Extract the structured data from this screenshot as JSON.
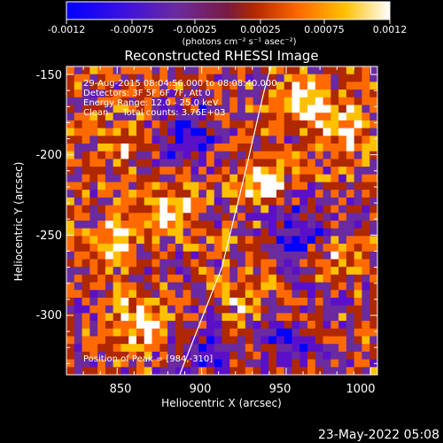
{
  "chart_data": {
    "type": "heatmap",
    "title": "Reconstructed RHESSI Image",
    "xlabel": "Heliocentric X (arcsec)",
    "ylabel": "Heliocentric Y (arcsec)",
    "xlim": [
      820,
      1004
    ],
    "ylim": [
      -337,
      -145
    ],
    "x_ticks": [
      850,
      900,
      950,
      1000
    ],
    "y_ticks": [
      -150,
      -200,
      -250,
      -300
    ],
    "colorbar": {
      "range": [
        -0.0012,
        0.0012
      ],
      "tick_labels": [
        "-0.0012",
        "-0.00075",
        "-0.00025",
        "0.00025",
        "0.00075",
        "0.0012"
      ],
      "unit_label": "(photons cm⁻² s⁻¹ asec⁻²)",
      "colors": [
        "#0000ff",
        "#5a10c8",
        "#6a2aa0",
        "#b02800",
        "#ff6a00",
        "#ffc000",
        "#ffffff"
      ]
    },
    "annotations": [
      "29-Aug-2015 08:04:56.000 to 08:08:40.000",
      "Detectors: 3F 5F 6F 7F, Att 0",
      "Energy Range: 12.0 - 25.0 keV",
      "Clean     Total counts: 3.76E+03"
    ],
    "peak_label": "Position of Peak = [984,-310]",
    "limb_curve": [
      [
        887,
        -337
      ],
      [
        912,
        -270
      ],
      [
        926,
        -210
      ],
      [
        937,
        -160
      ],
      [
        941,
        -145
      ]
    ],
    "grid": false
  },
  "footer": {
    "date": "23-May-2022 05:08"
  }
}
